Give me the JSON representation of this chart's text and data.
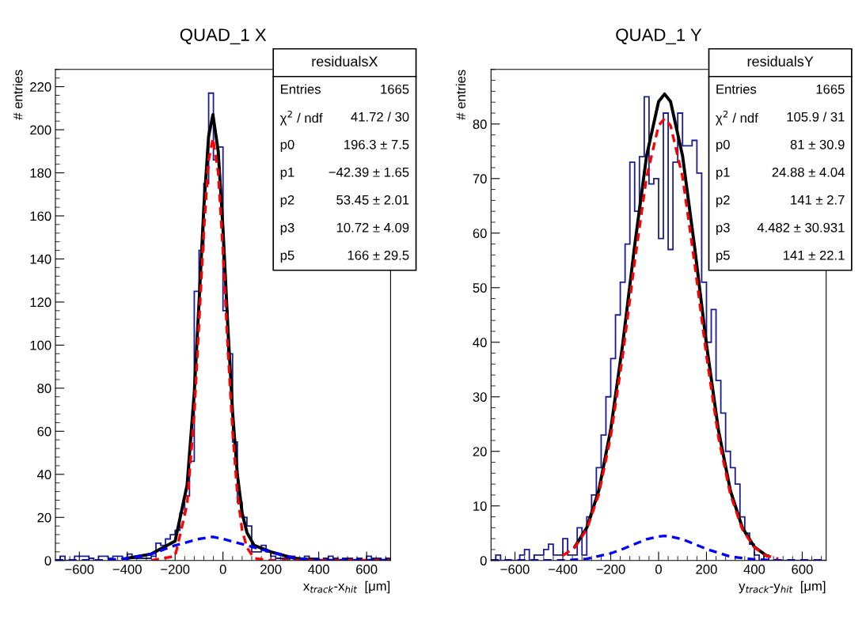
{
  "chart_data": [
    {
      "type": "histogram",
      "title": "QUAD_1 X",
      "xlabel": "x$_{track}$-x$_{hit}$  [μm]",
      "ylabel": "# entries",
      "xlim": [
        -700,
        700
      ],
      "ylim": [
        0,
        228
      ],
      "xticks": [
        -600,
        -400,
        -200,
        0,
        200,
        400,
        600
      ],
      "yticks": [
        0,
        20,
        40,
        60,
        80,
        100,
        120,
        140,
        160,
        180,
        200,
        220
      ],
      "grid": false,
      "legend": false,
      "color": "#1c1c96",
      "bins": [
        -700,
        -680,
        -660,
        -640,
        -620,
        -600,
        -580,
        -560,
        -540,
        -520,
        -500,
        -480,
        -460,
        -440,
        -420,
        -400,
        -380,
        -360,
        -340,
        -320,
        -300,
        -280,
        -260,
        -240,
        -220,
        -200,
        -180,
        -160,
        -140,
        -120,
        -100,
        -80,
        -60,
        -40,
        -20,
        0,
        20,
        40,
        60,
        80,
        100,
        120,
        140,
        160,
        180,
        200,
        220,
        240,
        260,
        280,
        300,
        320,
        340,
        360,
        380,
        400,
        420,
        440,
        460,
        480,
        500,
        520,
        540,
        560,
        580,
        600,
        620,
        640,
        660,
        680,
        700
      ],
      "values": [
        0,
        2,
        0,
        0,
        2,
        2,
        2,
        1,
        0,
        2,
        2,
        1,
        2,
        2,
        1,
        3,
        1,
        1,
        1,
        1,
        2,
        8,
        7,
        10,
        12,
        14,
        22,
        30,
        46,
        125,
        144,
        175,
        217,
        186,
        192,
        116,
        96,
        55,
        27,
        20,
        16,
        4,
        4,
        7,
        4,
        2,
        1,
        1,
        1,
        2,
        1,
        0,
        2,
        1,
        1,
        0,
        1,
        2,
        1,
        0,
        1,
        1,
        0,
        1,
        0,
        2,
        1,
        1,
        0,
        1
      ],
      "series": [
        {
          "type": "line",
          "color": "#000000",
          "line_style": "solid",
          "x": [
            -400,
            -300,
            -200,
            -150,
            -120,
            -100,
            -80,
            -60,
            -42,
            -20,
            0,
            20,
            40,
            60,
            80,
            100,
            130,
            200,
            300,
            400,
            500,
            700
          ],
          "values": [
            1,
            3,
            9,
            35,
            78,
            120,
            164,
            197,
            207,
            190,
            154,
            109,
            69,
            40,
            22,
            13,
            7,
            4,
            1,
            0,
            0,
            0
          ]
        },
        {
          "type": "line",
          "color": "#ff0000",
          "line_style": "dashed",
          "x": [
            -300,
            -200,
            -150,
            -120,
            -100,
            -80,
            -60,
            -42,
            -20,
            0,
            20,
            40,
            60,
            80,
            100,
            130,
            200,
            700
          ],
          "values": [
            0,
            2,
            26,
            68,
            110,
            153,
            186,
            196,
            180,
            143,
            99,
            60,
            31,
            14,
            6,
            1,
            0,
            0
          ]
        },
        {
          "type": "line",
          "color": "#0000ff",
          "line_style": "dashed",
          "x": [
            -700,
            -600,
            -500,
            -400,
            -300,
            -200,
            -100,
            -42,
            0,
            100,
            200,
            300,
            400,
            500,
            600,
            700
          ],
          "values": [
            0,
            0,
            0,
            1,
            3,
            7,
            10,
            11,
            10,
            7,
            4,
            1,
            0,
            0,
            0,
            0
          ]
        }
      ],
      "annotations": [
        "residualsX",
        "Entries",
        "1665",
        "χ$^{2}$ / ndf",
        "41.72 / 30",
        "p0",
        "196.3 ± 7.5",
        "p1",
        "−42.39 ± 1.65",
        "p2",
        "53.45 ± 2.01",
        "p3",
        "10.72 ± 4.09",
        "p5",
        "166 ± 29.5"
      ]
    },
    {
      "type": "histogram",
      "title": "QUAD_1 Y",
      "xlabel": "y$_{track}$-y$_{hit}$  [μm]",
      "ylabel": "# entries",
      "xlim": [
        -700,
        700
      ],
      "ylim": [
        0,
        90
      ],
      "xticks": [
        -600,
        -400,
        -200,
        0,
        200,
        400,
        600
      ],
      "yticks": [
        0,
        10,
        20,
        30,
        40,
        50,
        60,
        70,
        80
      ],
      "grid": false,
      "legend": false,
      "color": "#1c1c96",
      "bins": [
        -700,
        -680,
        -660,
        -640,
        -620,
        -600,
        -580,
        -560,
        -540,
        -520,
        -500,
        -480,
        -460,
        -440,
        -420,
        -400,
        -380,
        -360,
        -340,
        -320,
        -300,
        -280,
        -260,
        -240,
        -220,
        -200,
        -180,
        -160,
        -140,
        -120,
        -100,
        -80,
        -60,
        -40,
        -20,
        0,
        20,
        40,
        60,
        80,
        100,
        120,
        140,
        160,
        180,
        200,
        220,
        240,
        260,
        280,
        300,
        320,
        340,
        360,
        380,
        400,
        420,
        440,
        460,
        480,
        500,
        520,
        540,
        560,
        580,
        600,
        620,
        640,
        660,
        680,
        700
      ],
      "values": [
        0,
        1,
        0,
        0,
        0,
        0,
        1,
        2,
        0,
        1,
        1,
        2,
        3,
        1,
        1,
        4,
        1,
        1,
        6,
        1,
        8,
        12,
        17,
        23,
        30,
        37,
        45,
        51,
        58,
        73,
        64,
        74,
        85,
        69,
        70,
        59,
        82,
        57,
        73,
        82,
        76,
        76,
        77,
        71,
        51,
        40,
        46,
        33,
        27,
        20,
        17,
        14,
        8,
        5,
        3,
        1,
        0,
        1,
        0,
        0,
        0,
        0,
        0,
        0,
        0,
        0,
        0,
        0,
        0,
        0
      ],
      "series": [
        {
          "type": "line",
          "color": "#000000",
          "line_style": "solid",
          "x": [
            -350,
            -300,
            -250,
            -200,
            -150,
            -100,
            -50,
            0,
            25,
            50,
            100,
            150,
            200,
            250,
            300,
            350,
            400,
            450
          ],
          "values": [
            2.5,
            6,
            12.8,
            24,
            39.6,
            57.7,
            74.2,
            84.1,
            85.5,
            84.1,
            74.2,
            57.6,
            39.6,
            23.9,
            12.8,
            6,
            2.5,
            0.9
          ]
        },
        {
          "type": "line",
          "color": "#ff0000",
          "line_style": "dashed",
          "x": [
            -400,
            -350,
            -300,
            -250,
            -200,
            -150,
            -100,
            -50,
            0,
            25,
            50,
            100,
            150,
            200,
            250,
            300,
            350,
            400,
            450,
            500
          ],
          "values": [
            0.9,
            2.4,
            5.7,
            12.1,
            22.7,
            37.5,
            54.7,
            70.3,
            79.7,
            81,
            79.7,
            70.3,
            54.6,
            37.5,
            22.6,
            12.1,
            5.7,
            2.4,
            0.9,
            0.3
          ]
        },
        {
          "type": "line",
          "color": "#0000ff",
          "line_style": "dashed",
          "x": [
            -700,
            -600,
            -500,
            -400,
            -300,
            -200,
            -150,
            -100,
            -50,
            0,
            25,
            50,
            100,
            150,
            200,
            300,
            400,
            500,
            600,
            700
          ],
          "values": [
            0,
            0,
            0,
            0,
            0.3,
            1.3,
            2.1,
            3,
            3.9,
            4.4,
            4.5,
            4.4,
            3.9,
            3,
            2.1,
            0.7,
            0.2,
            0,
            0,
            0
          ]
        }
      ],
      "annotations": [
        "residualsY",
        "Entries",
        "1665",
        "χ$^{2}$ / ndf",
        "105.9 / 31",
        "p0",
        "81 ± 30.9",
        "p1",
        "24.88 ± 4.04",
        "p2",
        "141 ± 2.7",
        "p3",
        "4.482 ± 30.931",
        "p5",
        "141 ± 22.1"
      ]
    }
  ]
}
